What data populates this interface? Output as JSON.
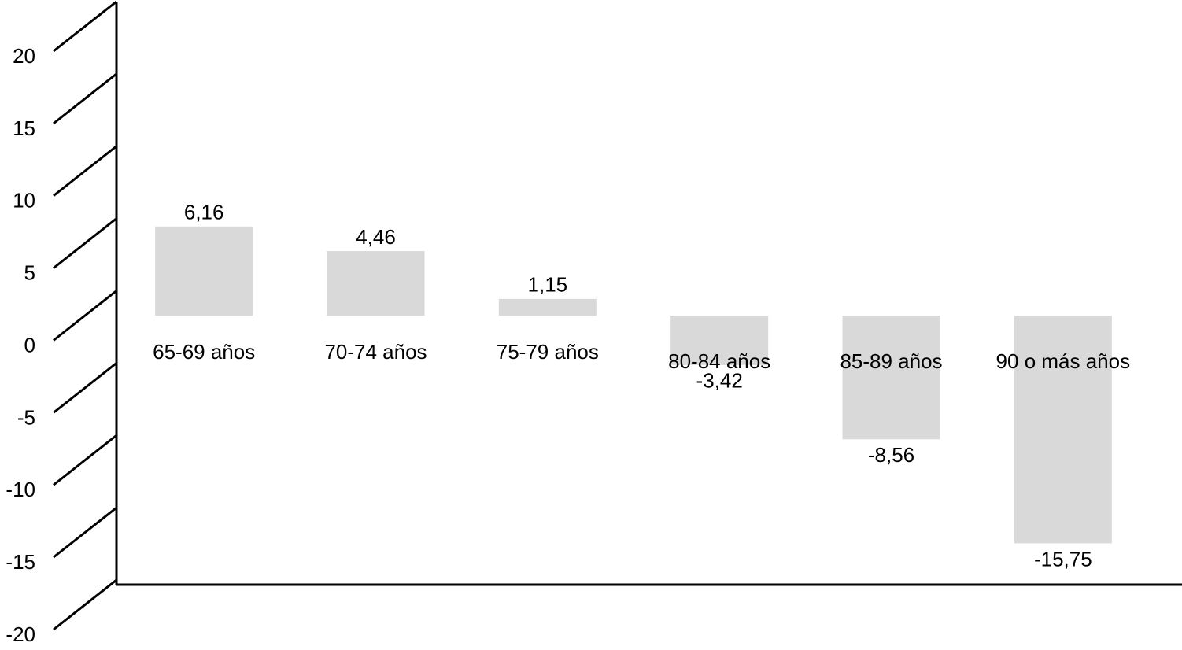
{
  "chart_data": {
    "type": "bar",
    "categories": [
      "65-69 años",
      "70-74 años",
      "75-79 años",
      "80-84 años",
      "85-89 años",
      "90 o más años"
    ],
    "values": [
      6.16,
      4.46,
      1.15,
      -3.42,
      -8.56,
      -15.75
    ],
    "value_labels": [
      "6,16",
      "4,46",
      "1,15",
      "-3,42",
      "-8,56",
      "-15,75"
    ],
    "color": "#d9d9d9",
    "ylim": [
      -20,
      20
    ],
    "yticks": [
      -20,
      -15,
      -10,
      -5,
      0,
      5,
      10,
      15,
      20
    ]
  }
}
